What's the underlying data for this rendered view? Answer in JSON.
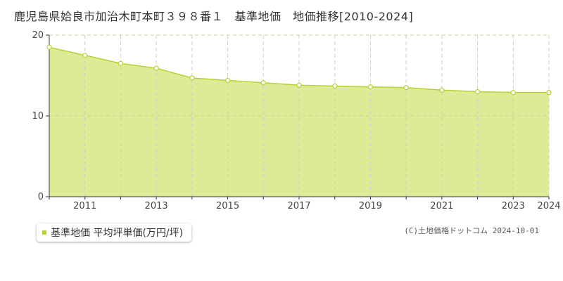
{
  "title": "鹿児島県姶良市加治木町本町３９８番１　基準地価　地価推移[2010-2024]",
  "copyright": "(C)土地価格ドットコム 2024-10-01",
  "colors": {
    "area_fill": "#dcec96",
    "line": "#b5d335",
    "point_fill": "#ffffff",
    "grid_vertical": "#cccccc",
    "grid_horizontal": "#c8d49a",
    "axis": "#333333"
  },
  "chart_data": {
    "type": "area",
    "x": [
      2010,
      2011,
      2012,
      2013,
      2014,
      2015,
      2016,
      2017,
      2018,
      2019,
      2020,
      2021,
      2022,
      2023,
      2024
    ],
    "series": [
      {
        "name": "基準地価 平均坪単価(万円/坪)",
        "values": [
          18.5,
          17.5,
          16.5,
          15.9,
          14.7,
          14.4,
          14.1,
          13.8,
          13.7,
          13.6,
          13.5,
          13.2,
          13.0,
          12.9,
          12.9
        ]
      }
    ],
    "x_tick_labels": [
      "2011",
      "2013",
      "2015",
      "2017",
      "2019",
      "2021",
      "2023",
      "2024"
    ],
    "y_ticks": [
      0,
      10,
      20
    ],
    "ylim": [
      0,
      20
    ],
    "xlim": [
      2010,
      2024
    ],
    "grid": true,
    "legend_position": "bottom-left"
  },
  "legend": {
    "label": "基準地価 平均坪単価(万円/坪)"
  }
}
